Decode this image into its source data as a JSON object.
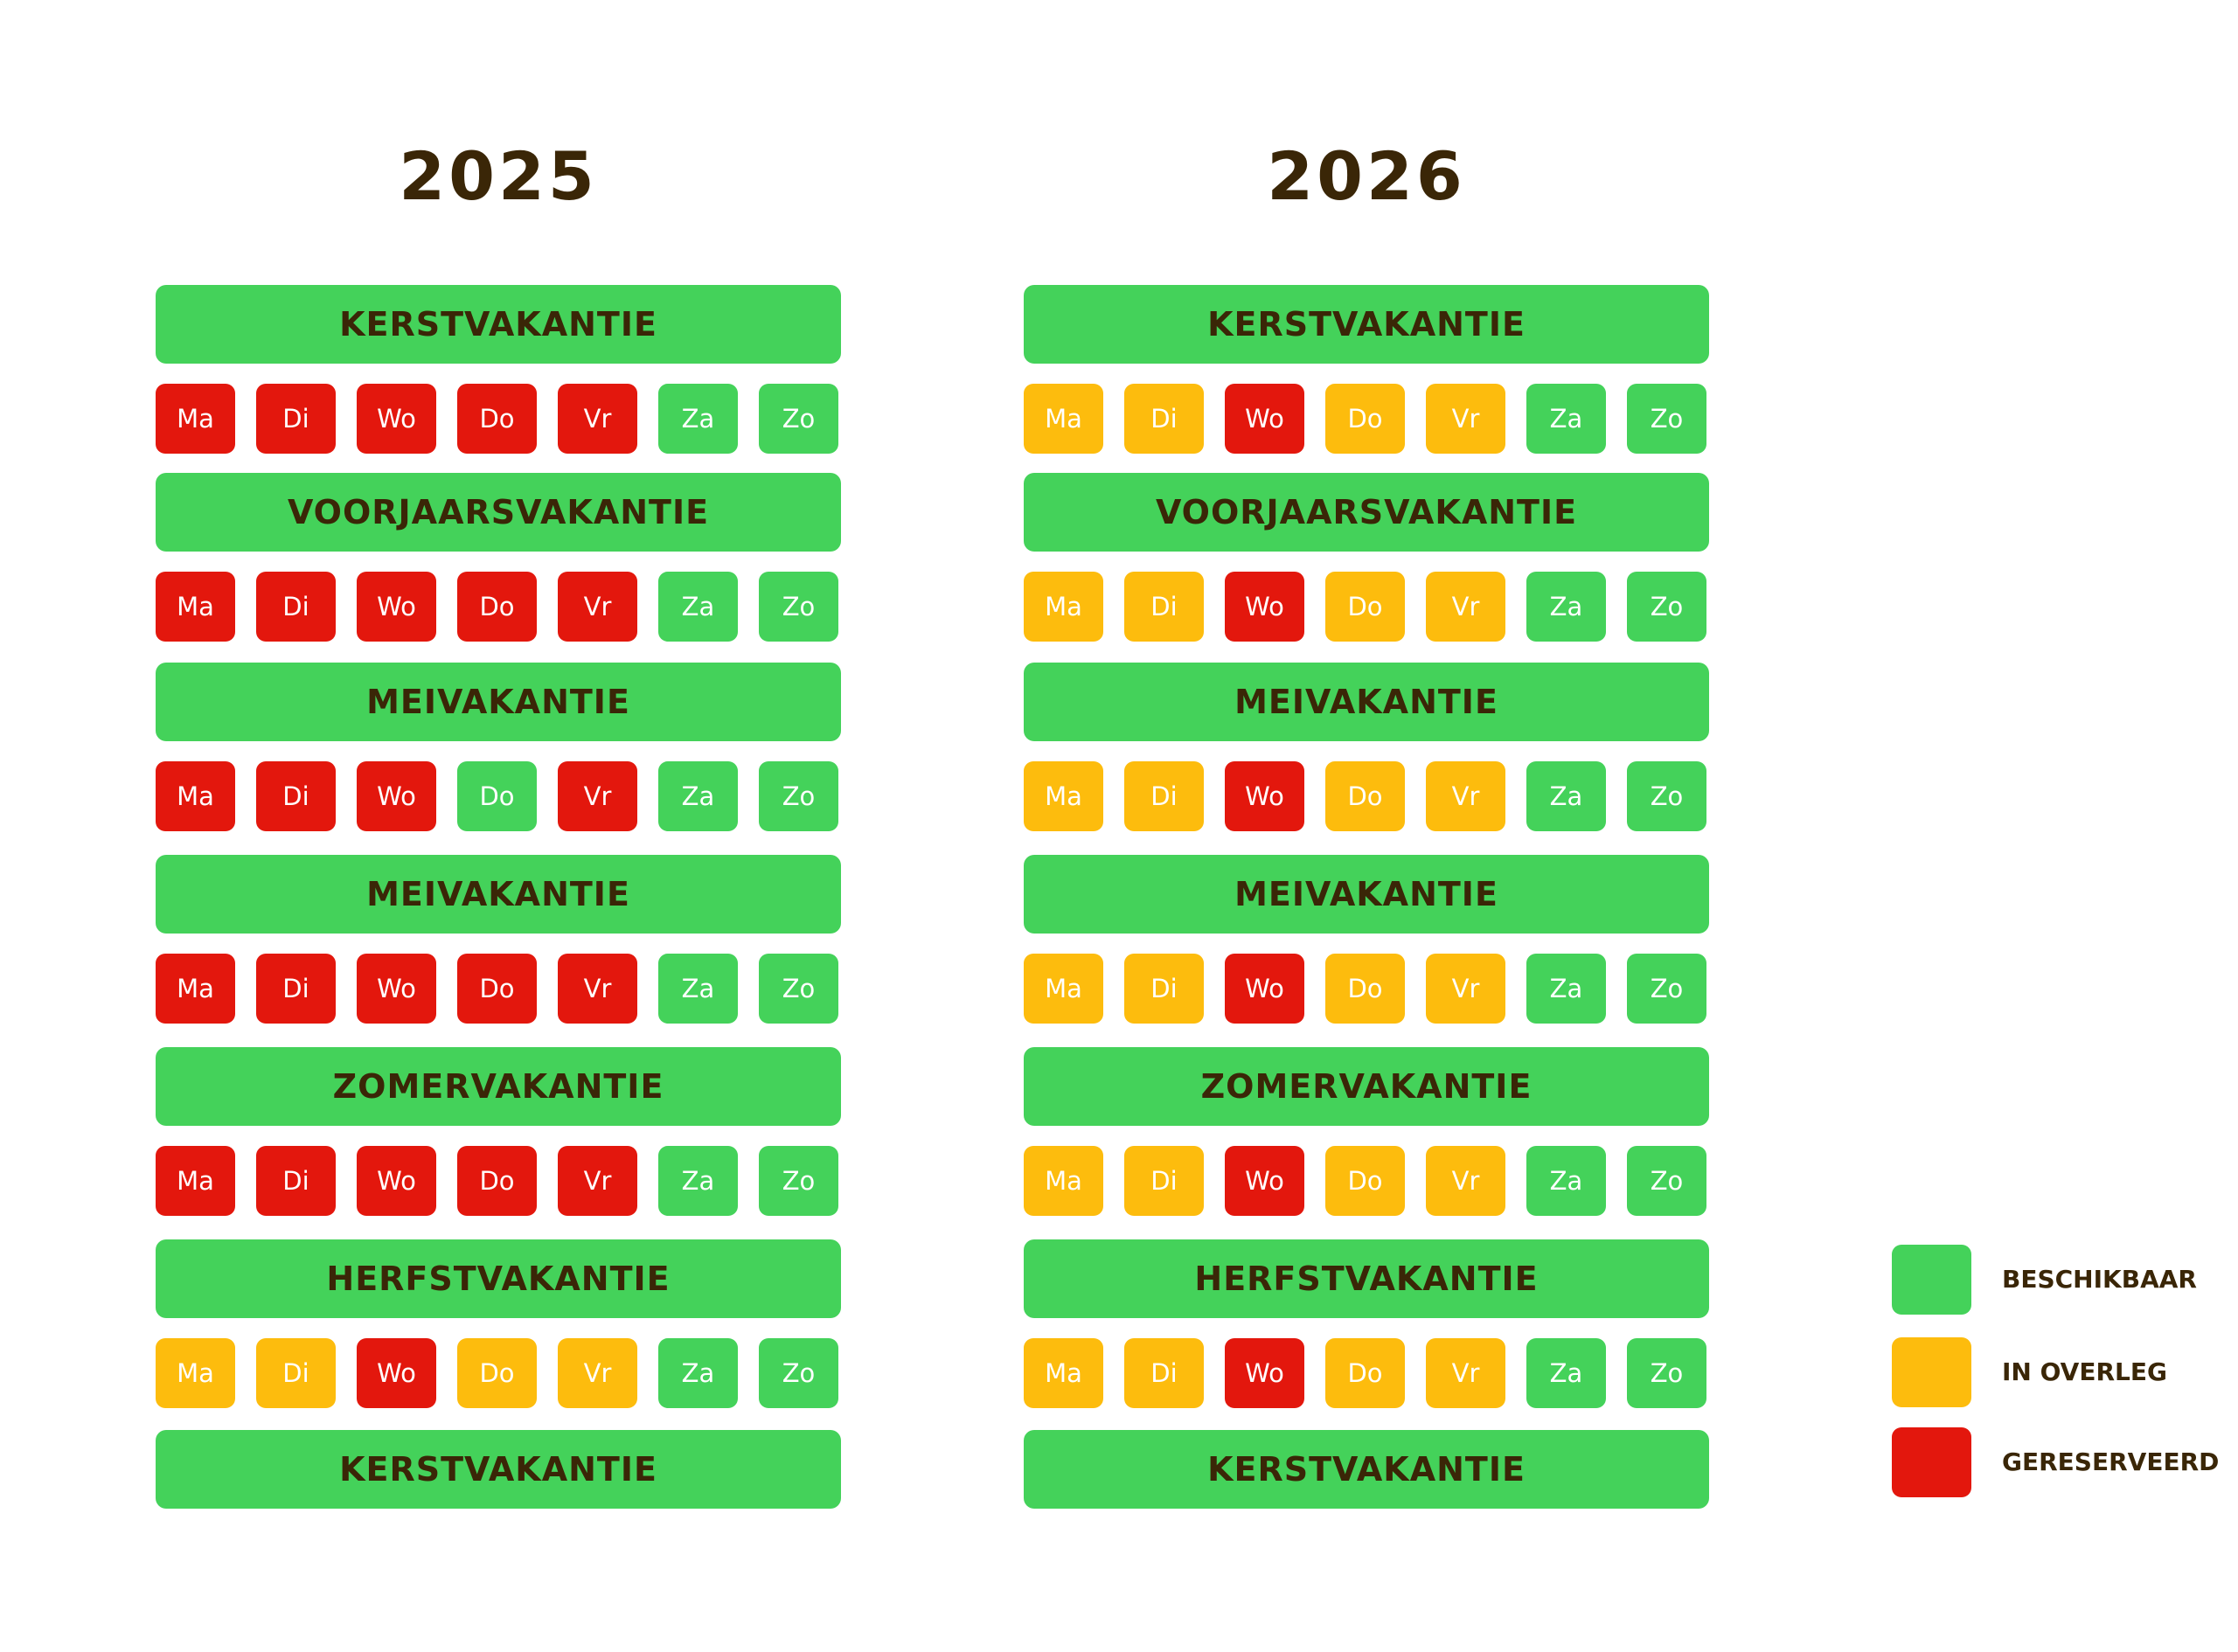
{
  "status_colors": {
    "green": "#44d25a",
    "yellow": "#fdbc0d",
    "red": "#e3170d"
  },
  "years": [
    {
      "title": "2025",
      "blocks": [
        {
          "name": "KERSTVAKANTIE",
          "days": [
            {
              "label": "Ma",
              "status": "red"
            },
            {
              "label": "Di",
              "status": "red"
            },
            {
              "label": "Wo",
              "status": "red"
            },
            {
              "label": "Do",
              "status": "red"
            },
            {
              "label": "Vr",
              "status": "red"
            },
            {
              "label": "Za",
              "status": "green"
            },
            {
              "label": "Zo",
              "status": "green"
            }
          ]
        },
        {
          "name": "VOORJAARSVAKANTIE",
          "days": [
            {
              "label": "Ma",
              "status": "red"
            },
            {
              "label": "Di",
              "status": "red"
            },
            {
              "label": "Wo",
              "status": "red"
            },
            {
              "label": "Do",
              "status": "red"
            },
            {
              "label": "Vr",
              "status": "red"
            },
            {
              "label": "Za",
              "status": "green"
            },
            {
              "label": "Zo",
              "status": "green"
            }
          ]
        },
        {
          "name": "MEIVAKANTIE",
          "days": [
            {
              "label": "Ma",
              "status": "red"
            },
            {
              "label": "Di",
              "status": "red"
            },
            {
              "label": "Wo",
              "status": "red"
            },
            {
              "label": "Do",
              "status": "green"
            },
            {
              "label": "Vr",
              "status": "red"
            },
            {
              "label": "Za",
              "status": "green"
            },
            {
              "label": "Zo",
              "status": "green"
            }
          ]
        },
        {
          "name": "MEIVAKANTIE",
          "days": [
            {
              "label": "Ma",
              "status": "red"
            },
            {
              "label": "Di",
              "status": "red"
            },
            {
              "label": "Wo",
              "status": "red"
            },
            {
              "label": "Do",
              "status": "red"
            },
            {
              "label": "Vr",
              "status": "red"
            },
            {
              "label": "Za",
              "status": "green"
            },
            {
              "label": "Zo",
              "status": "green"
            }
          ]
        },
        {
          "name": "ZOMERVAKANTIE",
          "days": [
            {
              "label": "Ma",
              "status": "red"
            },
            {
              "label": "Di",
              "status": "red"
            },
            {
              "label": "Wo",
              "status": "red"
            },
            {
              "label": "Do",
              "status": "red"
            },
            {
              "label": "Vr",
              "status": "red"
            },
            {
              "label": "Za",
              "status": "green"
            },
            {
              "label": "Zo",
              "status": "green"
            }
          ]
        },
        {
          "name": "HERFSTVAKANTIE",
          "days": [
            {
              "label": "Ma",
              "status": "yellow"
            },
            {
              "label": "Di",
              "status": "yellow"
            },
            {
              "label": "Wo",
              "status": "red"
            },
            {
              "label": "Do",
              "status": "yellow"
            },
            {
              "label": "Vr",
              "status": "yellow"
            },
            {
              "label": "Za",
              "status": "green"
            },
            {
              "label": "Zo",
              "status": "green"
            }
          ]
        },
        {
          "name": "KERSTVAKANTIE",
          "days": []
        }
      ]
    },
    {
      "title": "2026",
      "blocks": [
        {
          "name": "KERSTVAKANTIE",
          "days": [
            {
              "label": "Ma",
              "status": "yellow"
            },
            {
              "label": "Di",
              "status": "yellow"
            },
            {
              "label": "Wo",
              "status": "red"
            },
            {
              "label": "Do",
              "status": "yellow"
            },
            {
              "label": "Vr",
              "status": "yellow"
            },
            {
              "label": "Za",
              "status": "green"
            },
            {
              "label": "Zo",
              "status": "green"
            }
          ]
        },
        {
          "name": "VOORJAARSVAKANTIE",
          "days": [
            {
              "label": "Ma",
              "status": "yellow"
            },
            {
              "label": "Di",
              "status": "yellow"
            },
            {
              "label": "Wo",
              "status": "red"
            },
            {
              "label": "Do",
              "status": "yellow"
            },
            {
              "label": "Vr",
              "status": "yellow"
            },
            {
              "label": "Za",
              "status": "green"
            },
            {
              "label": "Zo",
              "status": "green"
            }
          ]
        },
        {
          "name": "MEIVAKANTIE",
          "days": [
            {
              "label": "Ma",
              "status": "yellow"
            },
            {
              "label": "Di",
              "status": "yellow"
            },
            {
              "label": "Wo",
              "status": "red"
            },
            {
              "label": "Do",
              "status": "yellow"
            },
            {
              "label": "Vr",
              "status": "yellow"
            },
            {
              "label": "Za",
              "status": "green"
            },
            {
              "label": "Zo",
              "status": "green"
            }
          ]
        },
        {
          "name": "MEIVAKANTIE",
          "days": [
            {
              "label": "Ma",
              "status": "yellow"
            },
            {
              "label": "Di",
              "status": "yellow"
            },
            {
              "label": "Wo",
              "status": "red"
            },
            {
              "label": "Do",
              "status": "yellow"
            },
            {
              "label": "Vr",
              "status": "yellow"
            },
            {
              "label": "Za",
              "status": "green"
            },
            {
              "label": "Zo",
              "status": "green"
            }
          ]
        },
        {
          "name": "ZOMERVAKANTIE",
          "days": [
            {
              "label": "Ma",
              "status": "yellow"
            },
            {
              "label": "Di",
              "status": "yellow"
            },
            {
              "label": "Wo",
              "status": "red"
            },
            {
              "label": "Do",
              "status": "yellow"
            },
            {
              "label": "Vr",
              "status": "yellow"
            },
            {
              "label": "Za",
              "status": "green"
            },
            {
              "label": "Zo",
              "status": "green"
            }
          ]
        },
        {
          "name": "HERFSTVAKANTIE",
          "days": [
            {
              "label": "Ma",
              "status": "yellow"
            },
            {
              "label": "Di",
              "status": "yellow"
            },
            {
              "label": "Wo",
              "status": "red"
            },
            {
              "label": "Do",
              "status": "yellow"
            },
            {
              "label": "Vr",
              "status": "yellow"
            },
            {
              "label": "Za",
              "status": "green"
            },
            {
              "label": "Zo",
              "status": "green"
            }
          ]
        },
        {
          "name": "KERSTVAKANTIE",
          "days": []
        }
      ]
    }
  ],
  "legend": [
    {
      "label": "BESCHIKBAAR",
      "status": "green"
    },
    {
      "label": "IN OVERLEG",
      "status": "yellow"
    },
    {
      "label": "GERESERVEERD",
      "status": "red"
    }
  ]
}
